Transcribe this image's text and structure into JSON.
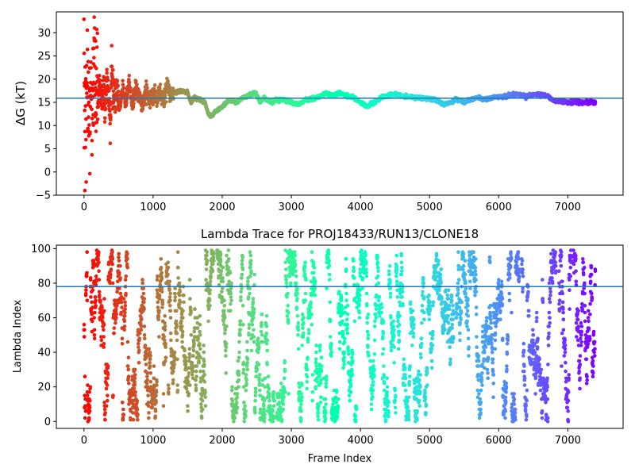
{
  "chart_data": [
    {
      "type": "scatter",
      "title": "",
      "xlabel": "",
      "ylabel": "ΔG (kT)",
      "xlim": [
        -400,
        7800
      ],
      "ylim": [
        -5,
        34.5
      ],
      "xticks": [
        0,
        1000,
        2000,
        3000,
        4000,
        5000,
        6000,
        7000
      ],
      "yticks": [
        -5,
        0,
        5,
        10,
        15,
        20,
        25,
        30
      ],
      "hline": 15.9,
      "grid": false,
      "colormap": "rainbow (red at frame 0 → violet at last frame)",
      "frame_count": 7400,
      "trace_anchors": [
        [
          0,
          30
        ],
        [
          4,
          4
        ],
        [
          8,
          25
        ],
        [
          12,
          1
        ],
        [
          16,
          20
        ],
        [
          20,
          10
        ],
        [
          25,
          28
        ],
        [
          30,
          6
        ],
        [
          35,
          18
        ],
        [
          40,
          12
        ],
        [
          48,
          24
        ],
        [
          55,
          8
        ],
        [
          62,
          20
        ],
        [
          70,
          13
        ],
        [
          78,
          22
        ],
        [
          86,
          9
        ],
        [
          95,
          19
        ],
        [
          105,
          14
        ],
        [
          115,
          4
        ],
        [
          125,
          21
        ],
        [
          135,
          12
        ],
        [
          150,
          27
        ],
        [
          165,
          15
        ],
        [
          180,
          20
        ],
        [
          200,
          13
        ],
        [
          220,
          19
        ],
        [
          245,
          15
        ],
        [
          270,
          18
        ],
        [
          300,
          14
        ],
        [
          330,
          20
        ],
        [
          360,
          16
        ],
        [
          380,
          10
        ],
        [
          400,
          22
        ],
        [
          430,
          15
        ],
        [
          470,
          19
        ],
        [
          510,
          14
        ],
        [
          560,
          18
        ],
        [
          600,
          15
        ],
        [
          650,
          19
        ],
        [
          700,
          14.5
        ],
        [
          750,
          18.5
        ],
        [
          800,
          16
        ],
        [
          850,
          14
        ],
        [
          900,
          18
        ],
        [
          950,
          15
        ],
        [
          1000,
          17
        ],
        [
          1050,
          15.5
        ],
        [
          1100,
          17.5
        ],
        [
          1150,
          15
        ],
        [
          1200,
          18.5
        ],
        [
          1250,
          16
        ],
        [
          1300,
          17
        ],
        [
          1400,
          17.5
        ],
        [
          1500,
          17
        ],
        [
          1550,
          15
        ],
        [
          1600,
          16
        ],
        [
          1700,
          15.5
        ],
        [
          1750,
          15
        ],
        [
          1800,
          12.5
        ],
        [
          1850,
          12
        ],
        [
          1900,
          13
        ],
        [
          2000,
          14
        ],
        [
          2100,
          15.5
        ],
        [
          2200,
          15
        ],
        [
          2300,
          16
        ],
        [
          2400,
          16.5
        ],
        [
          2450,
          17
        ],
        [
          2500,
          16.5
        ],
        [
          2550,
          15
        ],
        [
          2600,
          16
        ],
        [
          2700,
          15
        ],
        [
          2800,
          15.5
        ],
        [
          2900,
          15.5
        ],
        [
          3000,
          15
        ],
        [
          3100,
          14.5
        ],
        [
          3200,
          15.5
        ],
        [
          3300,
          15.8
        ],
        [
          3400,
          16.2
        ],
        [
          3500,
          17
        ],
        [
          3600,
          16.5
        ],
        [
          3700,
          17
        ],
        [
          3800,
          16.5
        ],
        [
          3900,
          16
        ],
        [
          4000,
          15
        ],
        [
          4100,
          14.2
        ],
        [
          4200,
          15
        ],
        [
          4300,
          16
        ],
        [
          4400,
          16.5
        ],
        [
          4500,
          16.8
        ],
        [
          4600,
          16.4
        ],
        [
          4700,
          16.2
        ],
        [
          4800,
          16
        ],
        [
          4900,
          15.9
        ],
        [
          5000,
          15.8
        ],
        [
          5100,
          15.5
        ],
        [
          5200,
          14.5
        ],
        [
          5300,
          15
        ],
        [
          5400,
          15.6
        ],
        [
          5500,
          15
        ],
        [
          5600,
          15.7
        ],
        [
          5700,
          16
        ],
        [
          5800,
          15.6
        ],
        [
          5900,
          16
        ],
        [
          6000,
          16.2
        ],
        [
          6100,
          16.4
        ],
        [
          6200,
          16.6
        ],
        [
          6300,
          16.7
        ],
        [
          6400,
          16.4
        ],
        [
          6500,
          16.6
        ],
        [
          6600,
          16.8
        ],
        [
          6700,
          16.4
        ],
        [
          6800,
          15.3
        ],
        [
          6900,
          15.4
        ],
        [
          7000,
          15
        ],
        [
          7100,
          15.1
        ],
        [
          7200,
          15
        ],
        [
          7300,
          15
        ],
        [
          7400,
          15
        ]
      ]
    },
    {
      "type": "scatter",
      "title": "Lambda Trace for PROJ18433/RUN13/CLONE18",
      "xlabel": "Frame Index",
      "ylabel": "Lambda Index",
      "xlim": [
        -400,
        7800
      ],
      "ylim": [
        -4,
        102
      ],
      "xticks": [
        0,
        1000,
        2000,
        3000,
        4000,
        5000,
        6000,
        7000
      ],
      "yticks": [
        0,
        20,
        40,
        60,
        80,
        100
      ],
      "hline": 78,
      "grid": false,
      "colormap": "rainbow (red at frame 0 → violet at last frame)",
      "frame_count": 7400,
      "value_range": [
        0,
        99
      ],
      "gap_frames": [
        [
          1880,
          1920
        ],
        [
          2760,
          2790
        ],
        [
          3440,
          3470
        ],
        [
          4120,
          4140
        ],
        [
          4280,
          4300
        ],
        [
          5350,
          5380
        ],
        [
          6300,
          6330
        ],
        [
          6830,
          6870
        ],
        [
          7050,
          7080
        ]
      ]
    }
  ]
}
